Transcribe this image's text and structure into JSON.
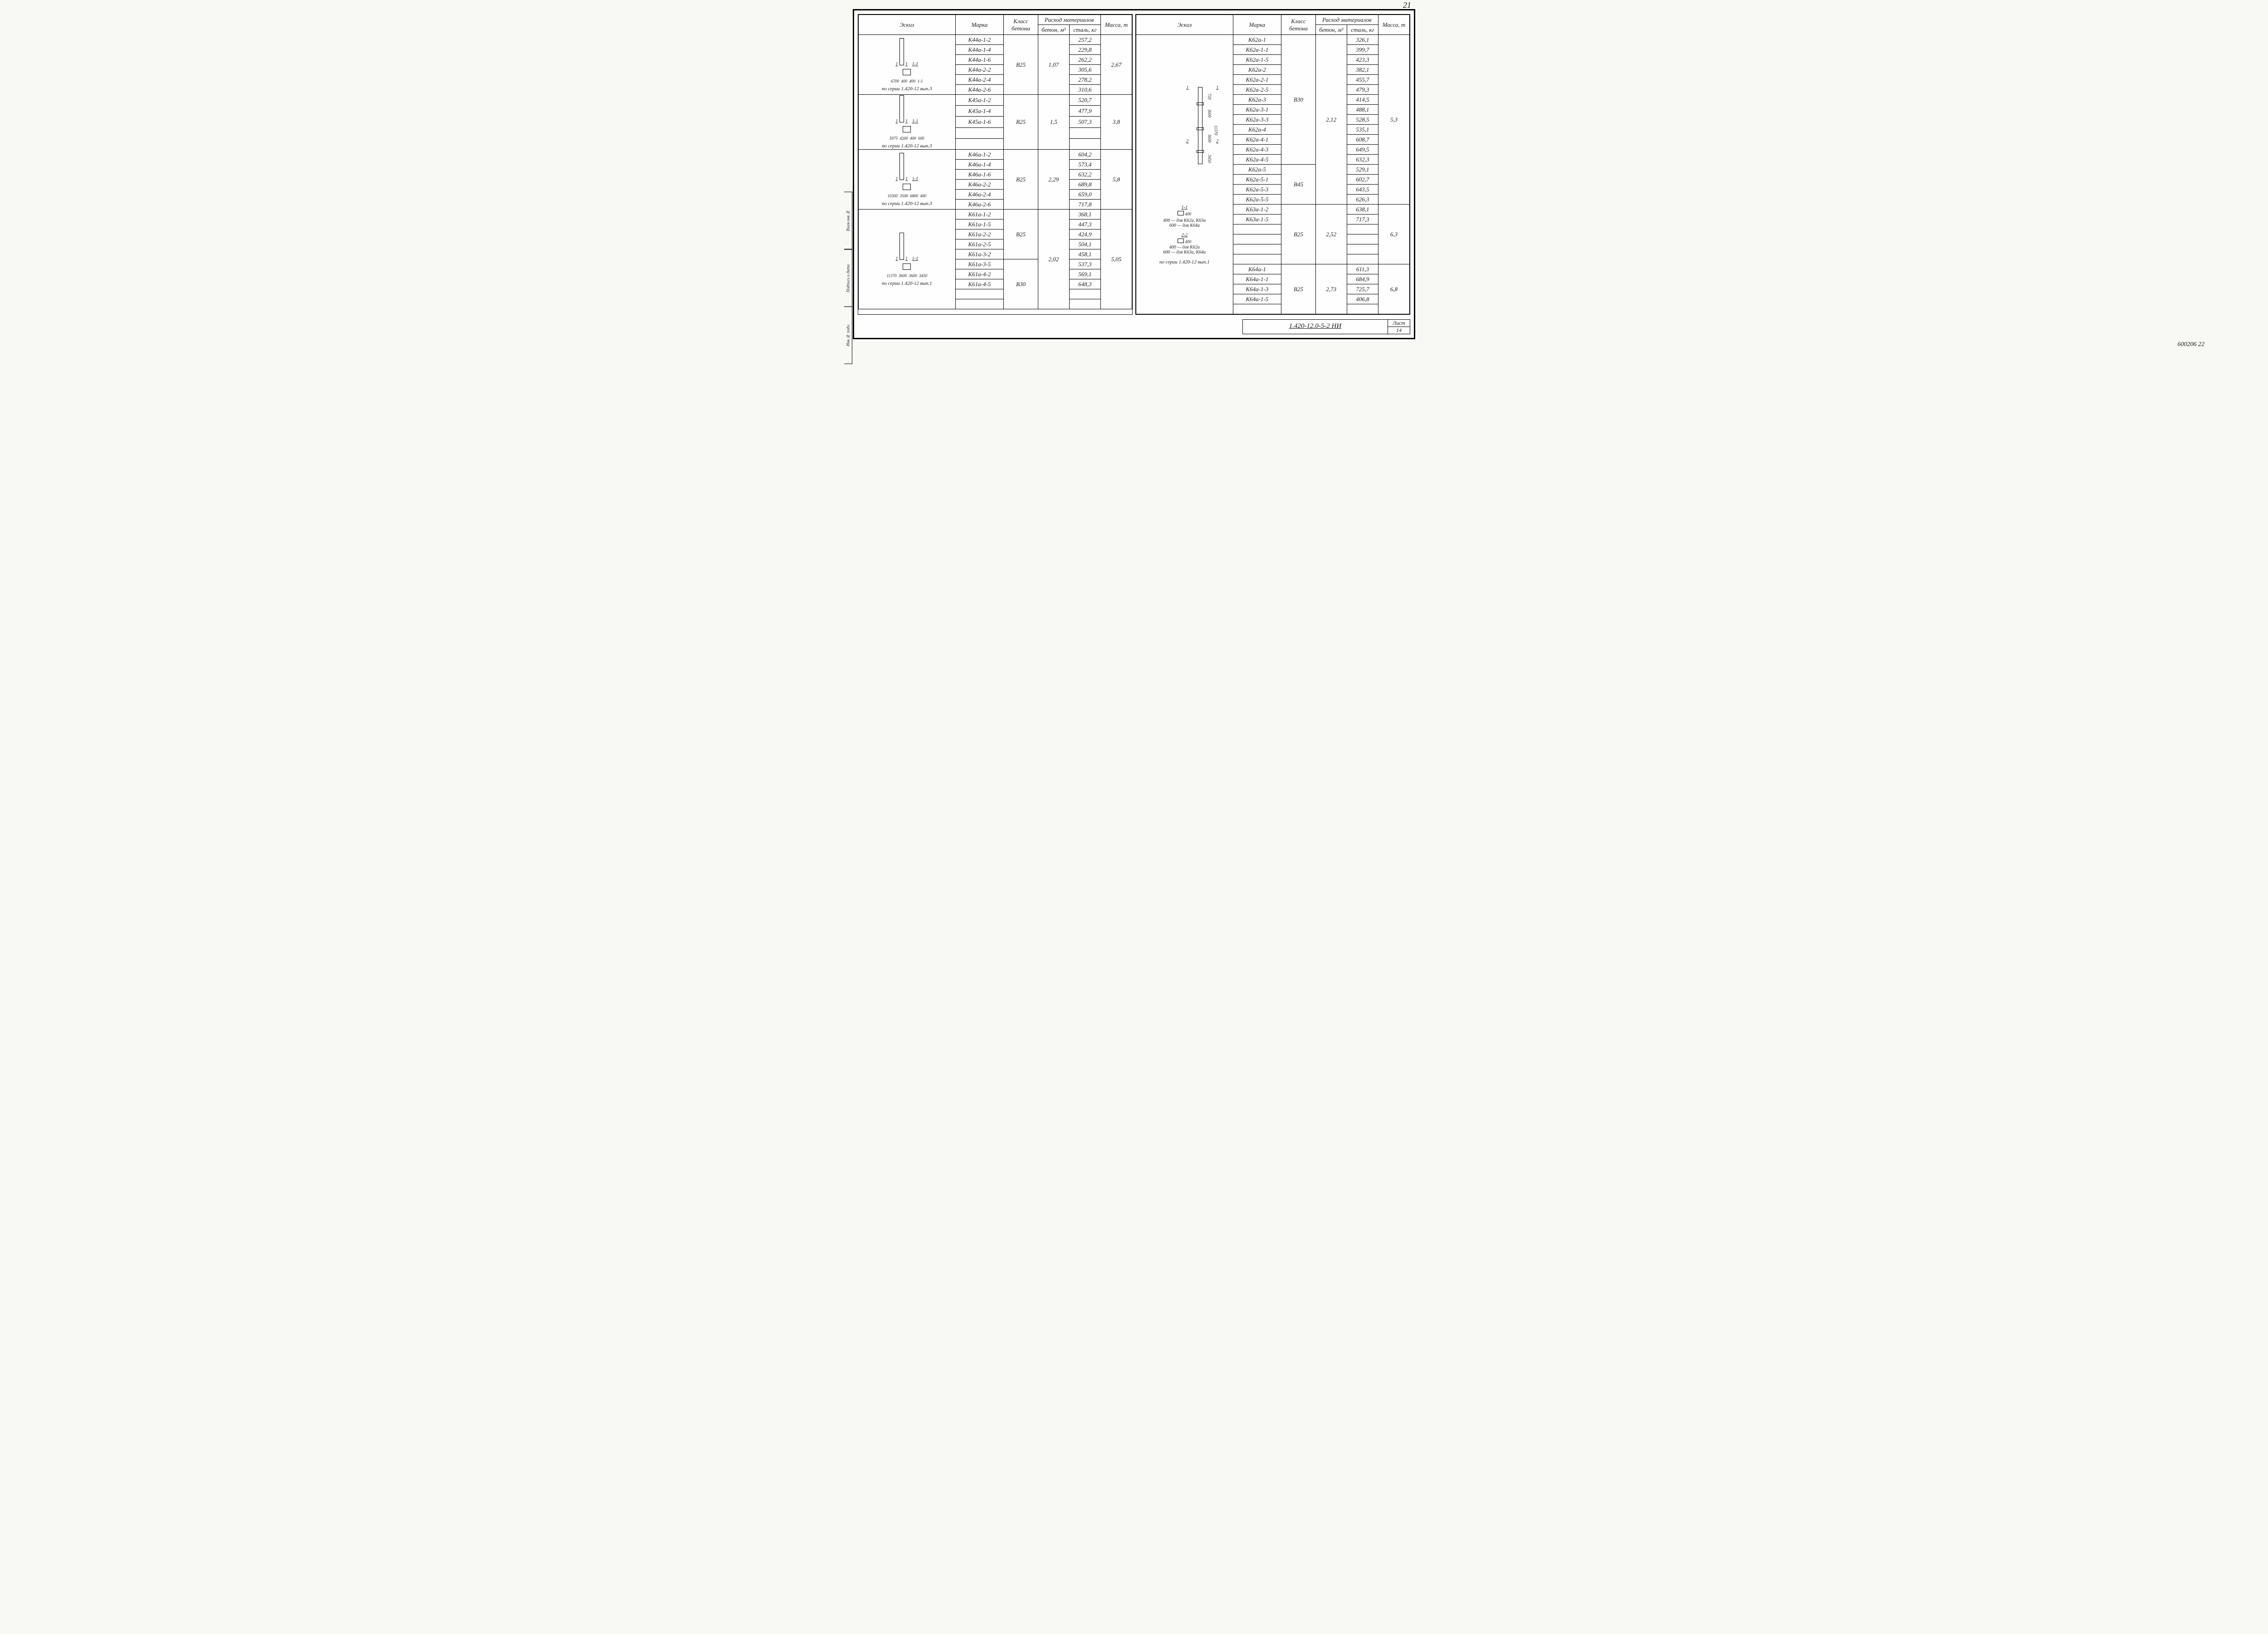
{
  "page_number_top": "21",
  "drawing_number": "1.420-12.0-5-2 НИ",
  "sheet_label": "Лист",
  "sheet_number": "14",
  "footer_code": "600206  22",
  "side_stamps": [
    "Взам.инв.№",
    "Подпись и дата",
    "Инв.№ подл."
  ],
  "headers": {
    "sketch": "Эскиз",
    "mark": "Марка",
    "class": "Класс бетона",
    "consumption": "Расход материалов",
    "beton": "бетон, м³",
    "steel": "сталь, кг",
    "mass": "Масса, т"
  },
  "left": {
    "groups": [
      {
        "sketch_note": "по серии 1.420-12 вып.3",
        "sketch_dims": [
          "6700",
          "400",
          "400",
          "1-1"
        ],
        "class": "В25",
        "beton": "1,07",
        "mass": "2,67",
        "rows": [
          {
            "mark": "К44а-1-2",
            "steel": "257,2"
          },
          {
            "mark": "К44а-1-4",
            "steel": "229,8"
          },
          {
            "mark": "К44а-1-6",
            "steel": "262,2"
          },
          {
            "mark": "К44а-2-2",
            "steel": "305,6"
          },
          {
            "mark": "К44а-2-4",
            "steel": "278,2"
          },
          {
            "mark": "К44а-2-6",
            "steel": "310,6"
          }
        ]
      },
      {
        "sketch_note": "по серии 1.420-12 вып.3",
        "sketch_dims": [
          "5975",
          "4200",
          "400",
          "600",
          "1-1"
        ],
        "class": "В25",
        "beton": "1,5",
        "mass": "3,8",
        "rows": [
          {
            "mark": "К45а-1-2",
            "steel": "520,7"
          },
          {
            "mark": "К45а-1-4",
            "steel": "477,9"
          },
          {
            "mark": "К45а-1-6",
            "steel": "507,3"
          },
          {
            "mark": "",
            "steel": ""
          },
          {
            "mark": "",
            "steel": ""
          }
        ]
      },
      {
        "sketch_note": "по серии 1.420-12 вып.3",
        "sketch_dims": [
          "10300",
          "3500",
          "6800",
          "400",
          "400",
          "600",
          "1-1",
          "2-2"
        ],
        "class": "В25",
        "beton": "2,29",
        "mass": "5,8",
        "rows": [
          {
            "mark": "К46а-1-2",
            "steel": "604,2"
          },
          {
            "mark": "К46а-1-4",
            "steel": "573,4"
          },
          {
            "mark": "К46а-1-6",
            "steel": "632,2"
          },
          {
            "mark": "К46а-2-2",
            "steel": "689,8"
          },
          {
            "mark": "К46а-2-4",
            "steel": "659,0"
          },
          {
            "mark": "К46а-2-6",
            "steel": "717,8"
          }
        ]
      },
      {
        "sketch_note": "по серии 1.420-12 вып.1",
        "sketch_dims": [
          "11370",
          "3600",
          "3600",
          "3450",
          "720",
          "400",
          "400",
          "1-1"
        ],
        "beton": "2,02",
        "mass": "5,05",
        "sub": [
          {
            "class": "В25",
            "rows": [
              {
                "mark": "К61а-1-2",
                "steel": "368,1"
              },
              {
                "mark": "К61а-1-5",
                "steel": "447,3"
              },
              {
                "mark": "К61а-2-2",
                "steel": "424,9"
              },
              {
                "mark": "К61а-2-5",
                "steel": "504,1"
              },
              {
                "mark": "К61а-3-2",
                "steel": "458,1"
              }
            ]
          },
          {
            "class": "В30",
            "rows": [
              {
                "mark": "К61а-3-5",
                "steel": "537,3"
              },
              {
                "mark": "К61а-4-2",
                "steel": "569,1"
              },
              {
                "mark": "К61а-4-5",
                "steel": "648,3"
              },
              {
                "mark": "",
                "steel": ""
              },
              {
                "mark": "",
                "steel": ""
              }
            ]
          }
        ]
      }
    ]
  },
  "right": {
    "groups": [
      {
        "sketch_note": "",
        "sketch_dims": [
          "11370",
          "3600",
          "3600",
          "3450",
          "720",
          "400",
          "1-1",
          "2-2",
          "400 — для К62а, К63а",
          "600 — для К64а",
          "для К62а",
          "для К63а, К64а"
        ],
        "beton": "2,12",
        "mass": "5,3",
        "sub": [
          {
            "class": "В30",
            "rows": [
              {
                "mark": "К62а-1",
                "steel": "326,1"
              },
              {
                "mark": "К62а-1-1",
                "steel": "399,7"
              },
              {
                "mark": "К62а-1-5",
                "steel": "423,3"
              },
              {
                "mark": "К62а-2",
                "steel": "382,1"
              },
              {
                "mark": "К62а-2-1",
                "steel": "455,7"
              },
              {
                "mark": "К62а-2-5",
                "steel": "479,3"
              },
              {
                "mark": "К62а-3",
                "steel": "414,5"
              },
              {
                "mark": "К62а-3-1",
                "steel": "488,1"
              },
              {
                "mark": "К62а-3-3",
                "steel": "528,5"
              },
              {
                "mark": "К62а-4",
                "steel": "535,1"
              },
              {
                "mark": "К62а-4-1",
                "steel": "608,7"
              },
              {
                "mark": "К62а-4-3",
                "steel": "649,5"
              },
              {
                "mark": "К62а-4-5",
                "steel": "632,3"
              }
            ]
          },
          {
            "class": "В45",
            "rows": [
              {
                "mark": "К62а-5",
                "steel": "529,1"
              },
              {
                "mark": "К62а-5-1",
                "steel": "602,7"
              },
              {
                "mark": "К62а-5-3",
                "steel": "643,5"
              },
              {
                "mark": "К62а-5-5",
                "steel": "626,3"
              }
            ]
          }
        ]
      },
      {
        "sketch_note": "",
        "class": "В25",
        "beton": "2,52",
        "mass": "6,3",
        "rows": [
          {
            "mark": "К63а-1-2",
            "steel": "638,1"
          },
          {
            "mark": "К63а-1-5",
            "steel": "717,3"
          },
          {
            "mark": "",
            "steel": ""
          },
          {
            "mark": "",
            "steel": ""
          },
          {
            "mark": "",
            "steel": ""
          },
          {
            "mark": "",
            "steel": ""
          }
        ]
      },
      {
        "sketch_note": "по серии 1.420-12 вып.1",
        "class": "В25",
        "beton": "2,73",
        "mass": "6,8",
        "rows": [
          {
            "mark": "К64а-1",
            "steel": "611,3"
          },
          {
            "mark": "К64а-1-1",
            "steel": "684,9"
          },
          {
            "mark": "К64а-1-3",
            "steel": "725,7"
          },
          {
            "mark": "К64а-1-5",
            "steel": "406,8"
          },
          {
            "mark": "",
            "steel": ""
          }
        ]
      }
    ]
  }
}
